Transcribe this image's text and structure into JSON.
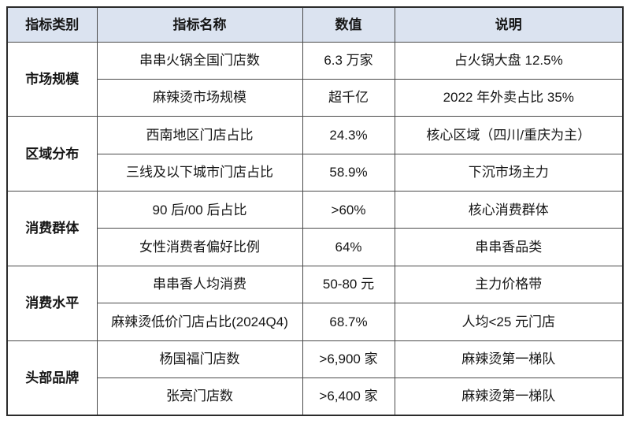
{
  "colors": {
    "header_bg": "#dbe3f0",
    "border": "#4a4a4a",
    "outer_border": "#2b2b2b",
    "text": "#161616"
  },
  "table": {
    "headers": [
      "指标类别",
      "指标名称",
      "数值",
      "说明"
    ],
    "groups": [
      {
        "category": "市场规模",
        "rows": [
          {
            "name": "串串火锅全国门店数",
            "value": "6.3 万家",
            "note": "占火锅大盘 12.5%"
          },
          {
            "name": "麻辣烫市场规模",
            "value": "超千亿",
            "note": "2022 年外卖占比 35%"
          }
        ]
      },
      {
        "category": "区域分布",
        "rows": [
          {
            "name": "西南地区门店占比",
            "value": "24.3%",
            "note": "核心区域（四川/重庆为主）"
          },
          {
            "name": "三线及以下城市门店占比",
            "value": "58.9%",
            "note": "下沉市场主力"
          }
        ]
      },
      {
        "category": "消费群体",
        "rows": [
          {
            "name": "90 后/00 后占比",
            "value": ">60%",
            "note": "核心消费群体"
          },
          {
            "name": "女性消费者偏好比例",
            "value": "64%",
            "note": "串串香品类"
          }
        ]
      },
      {
        "category": "消费水平",
        "rows": [
          {
            "name": "串串香人均消费",
            "value": "50-80 元",
            "note": "主力价格带"
          },
          {
            "name": "麻辣烫低价门店占比(2024Q4)",
            "value": "68.7%",
            "note": "人均<25 元门店"
          }
        ]
      },
      {
        "category": "头部品牌",
        "rows": [
          {
            "name": "杨国福门店数",
            "value": ">6,900 家",
            "note": "麻辣烫第一梯队"
          },
          {
            "name": "张亮门店数",
            "value": ">6,400 家",
            "note": "麻辣烫第一梯队"
          }
        ]
      }
    ]
  }
}
